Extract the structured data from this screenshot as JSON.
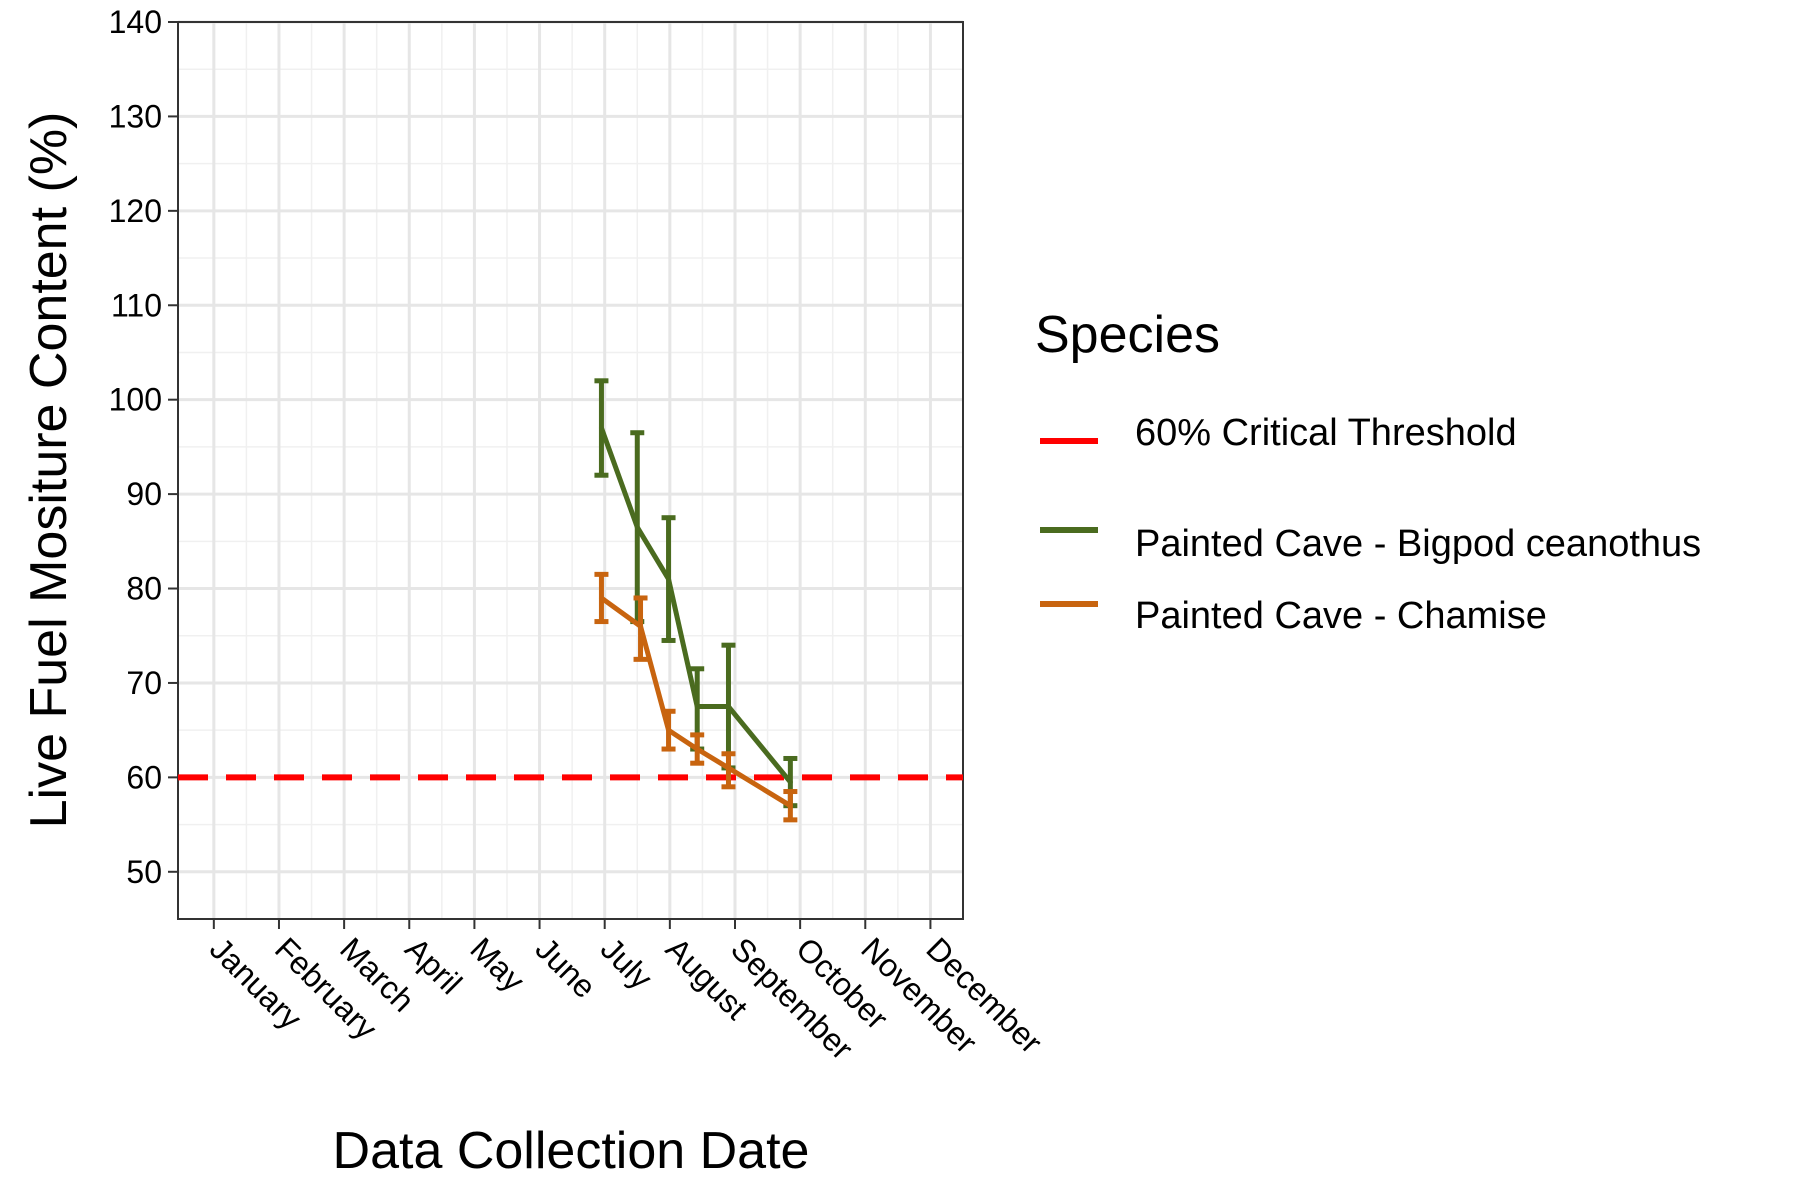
{
  "chart_data": {
    "type": "line",
    "xlabel": "Data Collection Date",
    "ylabel": "Live Fuel Mositure Content (%)",
    "x_unit": "month",
    "xlim": [
      0.45,
      12.5
    ],
    "ylim": [
      45,
      140
    ],
    "y_ticks": [
      50,
      60,
      70,
      80,
      90,
      100,
      110,
      120,
      130,
      140
    ],
    "x_tick_labels": [
      "January",
      "February",
      "March",
      "April",
      "May",
      "June",
      "July",
      "August",
      "September",
      "October",
      "November",
      "December"
    ],
    "grid": true,
    "legend": {
      "title": "Species",
      "placement": "right"
    },
    "threshold": {
      "name": "60% Critical Threshold",
      "value": 60,
      "color": "#ff0000",
      "style": "dashed"
    },
    "series": [
      {
        "name": "Painted Cave - Bigpod ceanothus",
        "color": "#4a6b1f",
        "points": [
          {
            "x": "late June",
            "month": 6.95,
            "y": 97,
            "lo": 92,
            "hi": 102
          },
          {
            "x": "mid July",
            "month": 7.5,
            "y": 86.5,
            "lo": 76.5,
            "hi": 96.5
          },
          {
            "x": "late July",
            "month": 7.98,
            "y": 81,
            "lo": 74.5,
            "hi": 87.5
          },
          {
            "x": "early August",
            "month": 8.42,
            "y": 67.5,
            "lo": 63,
            "hi": 71.5
          },
          {
            "x": "mid August",
            "month": 8.9,
            "y": 67.5,
            "lo": 61,
            "hi": 74
          },
          {
            "x": "early September",
            "month": 9.85,
            "y": 59.5,
            "lo": 57,
            "hi": 62
          }
        ]
      },
      {
        "name": "Painted Cave - Chamise",
        "color": "#c8640f",
        "points": [
          {
            "x": "late June",
            "month": 6.95,
            "y": 79,
            "lo": 76.5,
            "hi": 81.5
          },
          {
            "x": "mid July",
            "month": 7.55,
            "y": 76,
            "lo": 72.5,
            "hi": 79
          },
          {
            "x": "late July",
            "month": 7.98,
            "y": 65,
            "lo": 63,
            "hi": 67
          },
          {
            "x": "early August",
            "month": 8.42,
            "y": 63,
            "lo": 61.5,
            "hi": 64.5
          },
          {
            "x": "mid August",
            "month": 8.9,
            "y": 61,
            "lo": 59,
            "hi": 62.5
          },
          {
            "x": "early September",
            "month": 9.85,
            "y": 57,
            "lo": 55.5,
            "hi": 58.5
          }
        ]
      }
    ]
  }
}
